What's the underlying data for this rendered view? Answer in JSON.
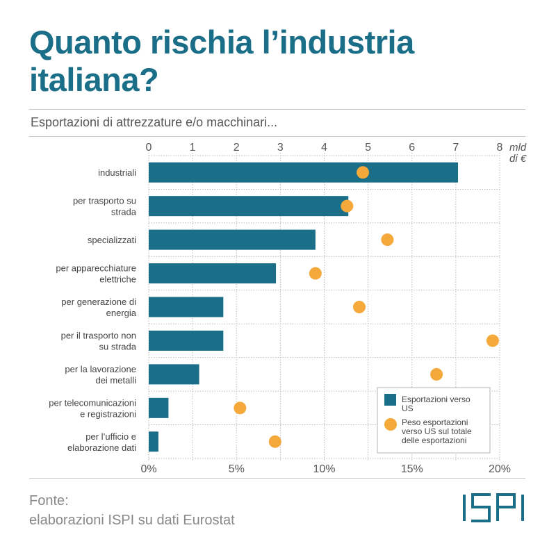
{
  "title": "Quanto rischia l’industria italiana?",
  "subtitle": "Esportazioni di attrezzature e/o macchinari...",
  "source_label": "Fonte:",
  "source_text": "elaborazioni ISPI su dati Eurostat",
  "logo_text": "ISPI",
  "colors": {
    "title": "#1a6e87",
    "bar": "#1a6e87",
    "dot": "#f5a93a",
    "grid": "#bbbbbb",
    "text": "#555555"
  },
  "chart_data": {
    "type": "bar",
    "orientation": "horizontal",
    "categories": [
      "industriali",
      "per trasporto su strada",
      "specializzati",
      "per apparecchiature elettriche",
      "per generazione di energia",
      "per il trasporto non su strada",
      "per la lavorazione dei metalli",
      "per telecomunicazioni e registrazioni",
      "per l’ufficio e elaborazione dati"
    ],
    "category_lines": [
      [
        "industriali"
      ],
      [
        "per trasporto su",
        "strada"
      ],
      [
        "specializzati"
      ],
      [
        "per apparecchiature",
        "elettriche"
      ],
      [
        "per generazione di",
        "energia"
      ],
      [
        "per il trasporto non",
        "su strada"
      ],
      [
        "per la lavorazione",
        "dei metalli"
      ],
      [
        "per telecomunicazioni",
        "e registrazioni"
      ],
      [
        "per l’ufficio e",
        "elaborazione dati"
      ]
    ],
    "series": [
      {
        "name": "Esportazioni verso US",
        "type": "bar",
        "axis": "top",
        "values": [
          7.05,
          4.55,
          3.8,
          2.9,
          1.7,
          1.7,
          1.15,
          0.45,
          0.22
        ]
      },
      {
        "name": "Peso esportazioni verso US sul totale delle esportazioni",
        "type": "scatter",
        "axis": "bottom",
        "values": [
          12.2,
          11.3,
          13.6,
          9.5,
          12.0,
          19.6,
          16.4,
          5.2,
          7.2
        ]
      }
    ],
    "x_top": {
      "label_lines": [
        "mld",
        "di €"
      ],
      "range": [
        0,
        8
      ],
      "ticks": [
        "0",
        "1",
        "2",
        "3",
        "4",
        "5",
        "6",
        "7",
        "8"
      ]
    },
    "x_bottom": {
      "range": [
        0,
        20
      ],
      "ticks": [
        "0%",
        "5%",
        "10%",
        "15%",
        "20%"
      ]
    },
    "legend": [
      {
        "shape": "square",
        "lines": [
          "Esportazioni verso",
          "US"
        ]
      },
      {
        "shape": "circle",
        "lines": [
          "Peso esportazioni",
          "verso US sul totale",
          "delle esportazioni"
        ]
      }
    ],
    "legend_position": "bottom-right"
  }
}
